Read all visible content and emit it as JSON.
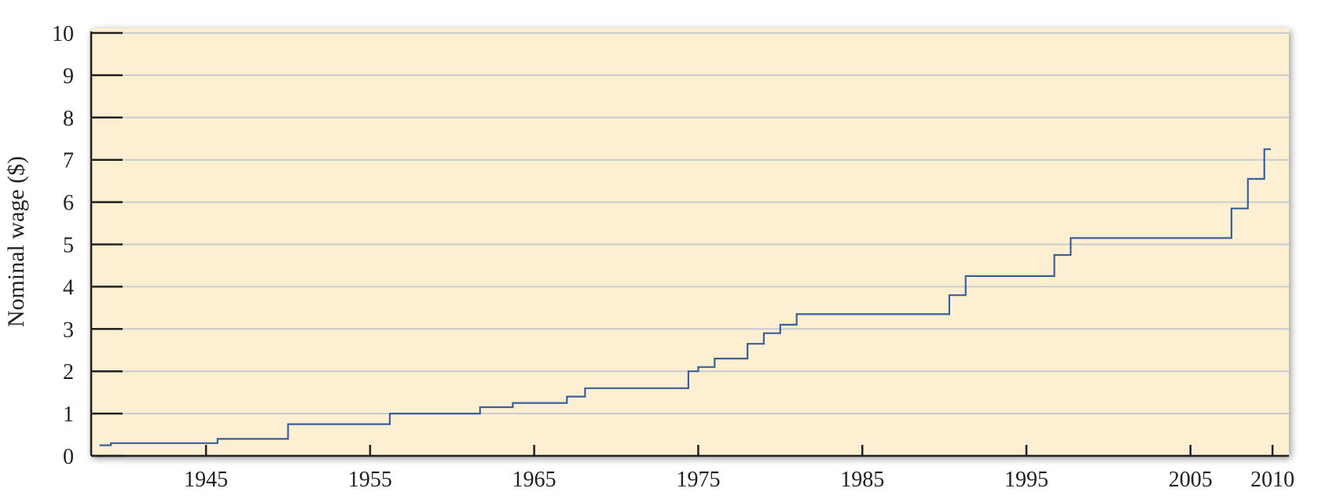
{
  "chart_data": {
    "type": "line",
    "step": true,
    "title": "",
    "xlabel": "",
    "ylabel": "Nominal wage ($)",
    "xlim": [
      1938,
      2011
    ],
    "ylim": [
      0,
      10
    ],
    "grid": true,
    "xticks": [
      1945,
      1955,
      1965,
      1975,
      1985,
      1995,
      2005,
      2010
    ],
    "yticks": [
      0,
      1,
      2,
      3,
      4,
      5,
      6,
      7,
      8,
      9,
      10
    ],
    "series": [
      {
        "x": [
          1938.5,
          1939.2,
          1945.7,
          1950.0,
          1956.2,
          1961.7,
          1963.7,
          1967.0,
          1968.1,
          1974.4,
          1975.0,
          1976.0,
          1978.0,
          1979.0,
          1980.0,
          1981.0,
          1990.3,
          1991.3,
          1996.7,
          1997.7,
          2007.5,
          2008.5,
          2009.5,
          2009.9
        ],
        "y": [
          0.25,
          0.3,
          0.4,
          0.75,
          1.0,
          1.15,
          1.25,
          1.4,
          1.6,
          2.0,
          2.1,
          2.3,
          2.65,
          2.9,
          3.1,
          3.35,
          3.8,
          4.25,
          4.75,
          5.15,
          5.85,
          6.55,
          7.25,
          7.25
        ]
      }
    ],
    "colors": {
      "line": "#3b5f9a",
      "plot_background": "#fdf0d2",
      "grid": "#c9cccf",
      "axis": "#231f20"
    }
  }
}
